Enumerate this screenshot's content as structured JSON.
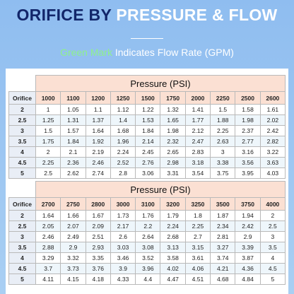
{
  "header": {
    "title_dark": "ORIFICE BY",
    "title_light": "PRESSURE & FLOW",
    "subtitle_green": "Green Mark",
    "subtitle_rest": "Indicates Flow Rate (GPM)"
  },
  "tables": [
    {
      "caption": "Pressure (PSI)",
      "row_header": "Orifice",
      "columns": [
        "1000",
        "1100",
        "1200",
        "1250",
        "1500",
        "1750",
        "2000",
        "2250",
        "2500",
        "2600"
      ],
      "rows": [
        {
          "orifice": "2",
          "values": [
            "1",
            "1.05",
            "1.1",
            "1.12",
            "1.22",
            "1.32",
            "1.41",
            "1.5",
            "1.58",
            "1.61"
          ]
        },
        {
          "orifice": "2.5",
          "values": [
            "1.25",
            "1.31",
            "1.37",
            "1.4",
            "1.53",
            "1.65",
            "1.77",
            "1.88",
            "1.98",
            "2.02"
          ]
        },
        {
          "orifice": "3",
          "values": [
            "1.5",
            "1.57",
            "1.64",
            "1.68",
            "1.84",
            "1.98",
            "2.12",
            "2.25",
            "2.37",
            "2.42"
          ]
        },
        {
          "orifice": "3.5",
          "values": [
            "1.75",
            "1.84",
            "1.92",
            "1.96",
            "2.14",
            "2.32",
            "2.47",
            "2.63",
            "2.77",
            "2.82"
          ]
        },
        {
          "orifice": "4",
          "values": [
            "2",
            "2.1",
            "2.19",
            "2.24",
            "2.45",
            "2.65",
            "2.83",
            "3",
            "3.16",
            "3.22"
          ]
        },
        {
          "orifice": "4.5",
          "values": [
            "2.25",
            "2.36",
            "2.46",
            "2.52",
            "2.76",
            "2.98",
            "3.18",
            "3.38",
            "3.56",
            "3.63"
          ]
        },
        {
          "orifice": "5",
          "values": [
            "2.5",
            "2.62",
            "2.74",
            "2.8",
            "3.06",
            "3.31",
            "3.54",
            "3.75",
            "3.95",
            "4.03"
          ]
        }
      ]
    },
    {
      "caption": "Pressure (PSI)",
      "row_header": "Orifice",
      "columns": [
        "2700",
        "2750",
        "2800",
        "3000",
        "3100",
        "3200",
        "3250",
        "3500",
        "3750",
        "4000"
      ],
      "rows": [
        {
          "orifice": "2",
          "values": [
            "1.64",
            "1.66",
            "1.67",
            "1.73",
            "1.76",
            "1.79",
            "1.8",
            "1.87",
            "1.94",
            "2"
          ]
        },
        {
          "orifice": "2.5",
          "values": [
            "2.05",
            "2.07",
            "2.09",
            "2.17",
            "2.2",
            "2.24",
            "2.25",
            "2.34",
            "2.42",
            "2.5"
          ]
        },
        {
          "orifice": "3",
          "values": [
            "2.46",
            "2.49",
            "2.51",
            "2.6",
            "2.64",
            "2.68",
            "2.7",
            "2.81",
            "2.9",
            "3"
          ]
        },
        {
          "orifice": "3.5",
          "values": [
            "2.88",
            "2.9",
            "2.93",
            "3.03",
            "3.08",
            "3.13",
            "3.15",
            "3.27",
            "3.39",
            "3.5"
          ]
        },
        {
          "orifice": "4",
          "values": [
            "3.29",
            "3.32",
            "3.35",
            "3.46",
            "3.52",
            "3.58",
            "3.61",
            "3.74",
            "3.87",
            "4"
          ]
        },
        {
          "orifice": "4.5",
          "values": [
            "3.7",
            "3.73",
            "3.76",
            "3.9",
            "3.96",
            "4.02",
            "4.06",
            "4.21",
            "4.36",
            "4.5"
          ]
        },
        {
          "orifice": "5",
          "values": [
            "4.11",
            "4.15",
            "4.18",
            "4.33",
            "4.4",
            "4.47",
            "4.51",
            "4.68",
            "4.84",
            "5"
          ]
        }
      ]
    }
  ]
}
